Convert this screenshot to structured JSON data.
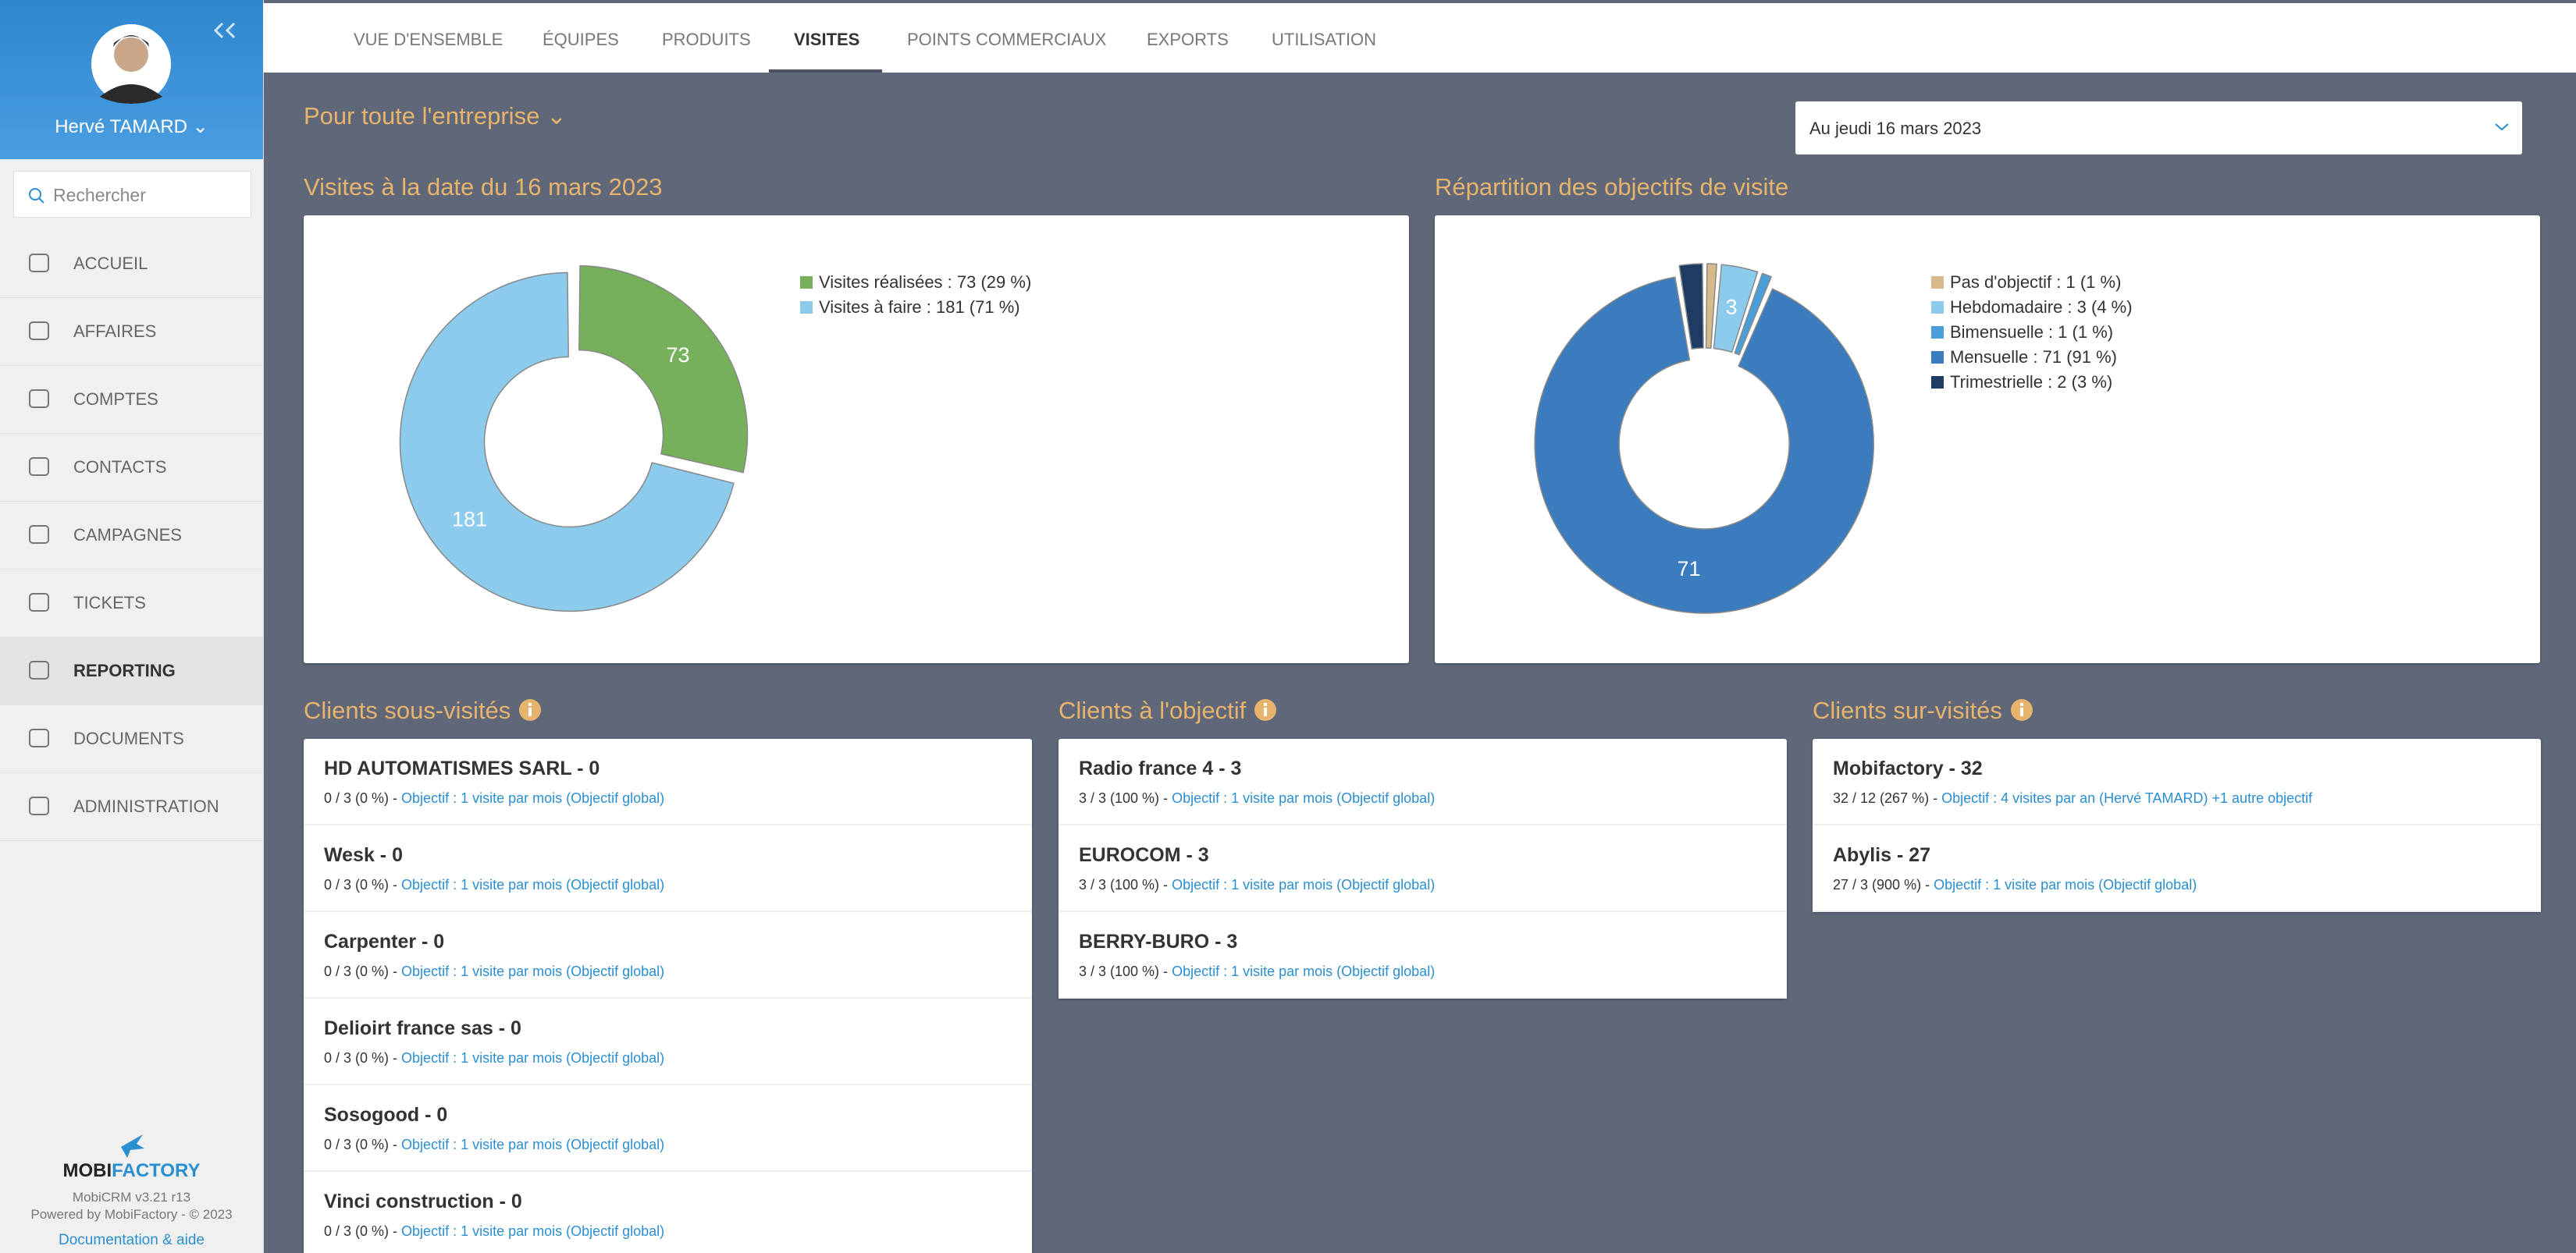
{
  "sidebar": {
    "user": "Hervé TAMARD",
    "search_placeholder": "Rechercher",
    "menu": [
      "ACCUEIL",
      "AFFAIRES",
      "COMPTES",
      "CONTACTS",
      "CAMPAGNES",
      "TICKETS",
      "REPORTING",
      "DOCUMENTS",
      "ADMINISTRATION"
    ],
    "brand_parts": [
      "MOBI",
      "FACTORY"
    ],
    "version": "MobiCRM v3.21 r13",
    "powered": "Powered by MobiFactory - © 2023",
    "help": "Documentation & aide"
  },
  "tabs": [
    "VUE D'ENSEMBLE",
    "ÉQUIPES",
    "PRODUITS",
    "VISITES",
    "POINTS COMMERCIAUX",
    "EXPORTS",
    "UTILISATION"
  ],
  "scope": "Pour toute l'entreprise",
  "date_select": "Au jeudi 16 mars 2023",
  "chart_data": [
    {
      "type": "donut",
      "title": "Visites à la date du 16 mars 2023",
      "categories": [
        "Visites réalisées",
        "Visites à faire"
      ],
      "values": [
        73,
        181
      ],
      "colors": [
        "#76b05a",
        "#8ccbec"
      ],
      "legend": [
        "Visites réalisées : 73 (29 %)",
        "Visites à faire : 181 (71 %)"
      ]
    },
    {
      "type": "donut",
      "title": "Répartition des objectifs de visite",
      "categories": [
        "Pas d'objectif",
        "Hebdomadaire",
        "Bimensuelle",
        "Mensuelle",
        "Trimestrielle"
      ],
      "values": [
        1,
        3,
        1,
        71,
        2
      ],
      "colors": [
        "#d8b98a",
        "#8ccbec",
        "#4a9fd8",
        "#3a7cbd",
        "#1e3b63"
      ],
      "legend": [
        "Pas d'objectif : 1 (1 %)",
        "Hebdomadaire : 3 (4 %)",
        "Bimensuelle : 1 (1 %)",
        "Mensuelle : 71 (91 %)",
        "Trimestrielle : 2 (3 %)"
      ],
      "value_labels": [
        null,
        "3",
        null,
        "71",
        null
      ]
    }
  ],
  "lists": [
    {
      "title": "Clients sous-visités",
      "items": [
        {
          "name": "HD AUTOMATISMES SARL - 0",
          "stats": "0 / 3 (0 %) -",
          "objective": "Objectif : 1 visite par mois (Objectif global)"
        },
        {
          "name": "Wesk - 0",
          "stats": "0 / 3 (0 %) -",
          "objective": "Objectif : 1 visite par mois (Objectif global)"
        },
        {
          "name": "Carpenter - 0",
          "stats": "0 / 3 (0 %) -",
          "objective": "Objectif : 1 visite par mois (Objectif global)"
        },
        {
          "name": "Delioirt france sas - 0",
          "stats": "0 / 3 (0 %) -",
          "objective": "Objectif : 1 visite par mois (Objectif global)"
        },
        {
          "name": "Sosogood - 0",
          "stats": "0 / 3 (0 %) -",
          "objective": "Objectif : 1 visite par mois (Objectif global)"
        },
        {
          "name": "Vinci construction - 0",
          "stats": "0 / 3 (0 %) -",
          "objective": "Objectif : 1 visite par mois (Objectif global)"
        }
      ]
    },
    {
      "title": "Clients à l'objectif",
      "items": [
        {
          "name": "Radio france 4 - 3",
          "stats": "3 / 3 (100 %) -",
          "objective": "Objectif : 1 visite par mois (Objectif global)"
        },
        {
          "name": "EUROCOM - 3",
          "stats": "3 / 3 (100 %) -",
          "objective": "Objectif : 1 visite par mois (Objectif global)"
        },
        {
          "name": "BERRY-BURO - 3",
          "stats": "3 / 3 (100 %) -",
          "objective": "Objectif : 1 visite par mois (Objectif global)"
        }
      ]
    },
    {
      "title": "Clients sur-visités",
      "items": [
        {
          "name": "Mobifactory - 32",
          "stats": "32 / 12 (267 %) -",
          "objective": "Objectif : 4 visites par an (Hervé TAMARD) +1 autre objectif"
        },
        {
          "name": "Abylis - 27",
          "stats": "27 / 3 (900 %) -",
          "objective": "Objectif : 1 visite par mois (Objectif global)"
        }
      ]
    }
  ]
}
